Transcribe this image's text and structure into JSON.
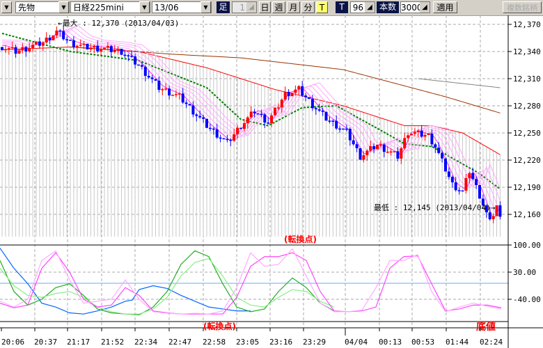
{
  "toolbar": {
    "menu_arrow": "▼",
    "market": "先物",
    "product": "日経225mini",
    "contract": "13/06",
    "bar_label": "足",
    "period_value": "1",
    "day": "日",
    "week": "週",
    "month": "月",
    "minute": "分",
    "tick": "T",
    "t_label": "T",
    "t_value": "96",
    "count_label": "本数",
    "count_value": "3000",
    "apply": "適用",
    "multi": "複数銘柄"
  },
  "annotations": {
    "max": "←最大 : 12,370 (2013/04/03)",
    "min": "最低 : 12,145 (2013/04/04)→",
    "turn_top": "(転換点)",
    "turn_bottom": "(転換点)",
    "bottom_value": "底値"
  },
  "colors": {
    "up": "#ff0000",
    "down": "#0000ff",
    "ma_green": "#008000",
    "ma_red": "#ff0000",
    "ma_brown": "#993300",
    "ma_gray": "#808080",
    "osc_pink": "#ff66ff",
    "osc_green": "#33aa33",
    "osc_blue": "#0066ff"
  },
  "chart_data": {
    "type": "candlestick",
    "price_axis": {
      "min": 12145,
      "max": 12370,
      "ticks": [
        "12,370",
        "12,340",
        "12,310",
        "12,280",
        "12,250",
        "12,220",
        "12,190",
        "12,160"
      ],
      "tick_values": [
        12370,
        12340,
        12310,
        12280,
        12250,
        12220,
        12190,
        12160
      ]
    },
    "osc_axis": {
      "ticks": [
        "100.00",
        "30.00",
        "-40.00"
      ],
      "tick_values": [
        100,
        30,
        -40
      ]
    },
    "time_labels": [
      "20:06",
      "20:37",
      "21:17",
      "21:52",
      "22:34",
      "22:47",
      "22:58",
      "23:05",
      "23:16",
      "23:29",
      "04/04",
      "00:13",
      "00:53",
      "01:44",
      "02:24"
    ],
    "bars": 147,
    "price_path": [
      [
        0,
        12345
      ],
      [
        4,
        12340
      ],
      [
        8,
        12345
      ],
      [
        12,
        12350
      ],
      [
        16,
        12362
      ],
      [
        20,
        12350
      ],
      [
        24,
        12345
      ],
      [
        30,
        12343
      ],
      [
        35,
        12340
      ],
      [
        40,
        12325
      ],
      [
        46,
        12300
      ],
      [
        52,
        12290
      ],
      [
        60,
        12258
      ],
      [
        66,
        12239
      ],
      [
        70,
        12258
      ],
      [
        74,
        12274
      ],
      [
        78,
        12262
      ],
      [
        83,
        12293
      ],
      [
        87,
        12298
      ],
      [
        91,
        12281
      ],
      [
        95,
        12266
      ],
      [
        101,
        12251
      ],
      [
        105,
        12224
      ],
      [
        110,
        12237
      ],
      [
        116,
        12224
      ],
      [
        119,
        12251
      ],
      [
        125,
        12247
      ],
      [
        127,
        12235
      ],
      [
        132,
        12193
      ],
      [
        135,
        12185
      ],
      [
        137,
        12208
      ],
      [
        140,
        12181
      ],
      [
        143,
        12151
      ],
      [
        145,
        12170
      ],
      [
        146,
        12155
      ]
    ],
    "ma_green": [
      [
        0,
        12360
      ],
      [
        20,
        12340
      ],
      [
        40,
        12330
      ],
      [
        60,
        12300
      ],
      [
        70,
        12265
      ],
      [
        78,
        12258
      ],
      [
        88,
        12278
      ],
      [
        98,
        12280
      ],
      [
        110,
        12255
      ],
      [
        118,
        12238
      ],
      [
        126,
        12235
      ],
      [
        133,
        12220
      ],
      [
        140,
        12205
      ],
      [
        146,
        12188
      ]
    ],
    "ma_red": [
      [
        0,
        12342
      ],
      [
        20,
        12345
      ],
      [
        40,
        12340
      ],
      [
        60,
        12322
      ],
      [
        80,
        12298
      ],
      [
        100,
        12280
      ],
      [
        118,
        12258
      ],
      [
        126,
        12258
      ],
      [
        135,
        12250
      ],
      [
        146,
        12226
      ]
    ],
    "ma_brown": [
      [
        20,
        12345
      ],
      [
        50,
        12337
      ],
      [
        70,
        12333
      ],
      [
        100,
        12320
      ],
      [
        130,
        12290
      ],
      [
        146,
        12272
      ]
    ],
    "ma_gray": [
      [
        122,
        12310
      ],
      [
        146,
        12300
      ]
    ],
    "osc_series": [
      {
        "name": "blue",
        "color": "#0066ff",
        "points": [
          [
            0,
            92
          ],
          [
            20,
            40
          ],
          [
            40,
            0
          ],
          [
            60,
            -50
          ],
          [
            80,
            -60
          ],
          [
            100,
            -75
          ],
          [
            120,
            -78
          ],
          [
            140,
            -70
          ],
          [
            160,
            -60
          ],
          [
            180,
            -45
          ],
          [
            190,
            -42
          ],
          [
            200,
            -15
          ],
          [
            220,
            -5
          ],
          [
            240,
            -12
          ],
          [
            260,
            -30
          ],
          [
            280,
            -45
          ],
          [
            300,
            -60
          ],
          [
            320,
            -65
          ],
          [
            340,
            -70
          ],
          [
            360,
            -70
          ]
        ]
      },
      {
        "name": "green1",
        "color": "#22aa22",
        "points": [
          [
            0,
            60
          ],
          [
            20,
            -20
          ],
          [
            40,
            -55
          ],
          [
            60,
            -40
          ],
          [
            80,
            -10
          ],
          [
            100,
            0
          ],
          [
            120,
            -30
          ],
          [
            140,
            -65
          ],
          [
            160,
            -75
          ],
          [
            180,
            -78
          ],
          [
            200,
            -80
          ],
          [
            220,
            -60
          ],
          [
            240,
            -20
          ],
          [
            260,
            50
          ],
          [
            280,
            85
          ],
          [
            300,
            70
          ],
          [
            320,
            0
          ],
          [
            340,
            -60
          ],
          [
            360,
            -72
          ],
          [
            380,
            -65
          ],
          [
            400,
            -20
          ],
          [
            420,
            15
          ],
          [
            440,
            -10
          ],
          [
            460,
            -50
          ],
          [
            480,
            -70
          ]
        ]
      },
      {
        "name": "green2",
        "color": "#88ee88",
        "points": [
          [
            0,
            40
          ],
          [
            20,
            -5
          ],
          [
            40,
            -30
          ],
          [
            60,
            -35
          ],
          [
            80,
            -25
          ],
          [
            100,
            -20
          ],
          [
            120,
            -35
          ],
          [
            140,
            -60
          ],
          [
            160,
            -72
          ],
          [
            180,
            -78
          ],
          [
            200,
            -78
          ],
          [
            220,
            -65
          ],
          [
            240,
            -35
          ],
          [
            260,
            20
          ],
          [
            280,
            55
          ],
          [
            300,
            65
          ],
          [
            320,
            20
          ],
          [
            340,
            -35
          ],
          [
            360,
            -55
          ],
          [
            380,
            -60
          ],
          [
            400,
            -35
          ],
          [
            420,
            -15
          ],
          [
            440,
            -20
          ],
          [
            460,
            -45
          ],
          [
            480,
            -60
          ]
        ]
      },
      {
        "name": "pink1",
        "color": "#ff44ff",
        "points": [
          [
            0,
            -50
          ],
          [
            20,
            -62
          ],
          [
            40,
            -55
          ],
          [
            60,
            40
          ],
          [
            80,
            80
          ],
          [
            100,
            30
          ],
          [
            120,
            -40
          ],
          [
            140,
            -60
          ],
          [
            160,
            -55
          ],
          [
            180,
            -10
          ],
          [
            200,
            -30
          ],
          [
            220,
            -70
          ],
          [
            240,
            -75
          ],
          [
            260,
            -78
          ],
          [
            280,
            -78
          ],
          [
            300,
            -78
          ],
          [
            320,
            -78
          ],
          [
            340,
            -35
          ],
          [
            360,
            45
          ],
          [
            380,
            70
          ],
          [
            400,
            70
          ],
          [
            420,
            80
          ],
          [
            440,
            60
          ],
          [
            460,
            -20
          ],
          [
            480,
            -70
          ],
          [
            500,
            -72
          ],
          [
            520,
            -70
          ],
          [
            540,
            -60
          ],
          [
            560,
            40
          ],
          [
            580,
            70
          ],
          [
            600,
            72
          ],
          [
            620,
            0
          ],
          [
            640,
            -70
          ],
          [
            660,
            -65
          ],
          [
            680,
            -55
          ],
          [
            700,
            -55
          ],
          [
            720,
            -62
          ]
        ]
      },
      {
        "name": "pink2",
        "color": "#ffaaff",
        "points": [
          [
            0,
            -45
          ],
          [
            20,
            -60
          ],
          [
            40,
            -40
          ],
          [
            60,
            60
          ],
          [
            80,
            85
          ],
          [
            100,
            10
          ],
          [
            120,
            -50
          ],
          [
            140,
            -45
          ],
          [
            160,
            -40
          ],
          [
            180,
            10
          ],
          [
            200,
            -40
          ],
          [
            220,
            -72
          ],
          [
            240,
            -76
          ],
          [
            260,
            -78
          ],
          [
            280,
            -76
          ],
          [
            300,
            -78
          ],
          [
            320,
            -70
          ],
          [
            340,
            -10
          ],
          [
            360,
            80
          ],
          [
            380,
            45
          ],
          [
            400,
            50
          ],
          [
            420,
            90
          ],
          [
            440,
            20
          ],
          [
            460,
            -50
          ],
          [
            480,
            -72
          ],
          [
            500,
            -72
          ],
          [
            520,
            -68
          ],
          [
            540,
            -10
          ],
          [
            560,
            60
          ],
          [
            580,
            60
          ],
          [
            600,
            75
          ],
          [
            620,
            -20
          ],
          [
            640,
            -72
          ],
          [
            660,
            -60
          ],
          [
            680,
            -50
          ],
          [
            700,
            -58
          ],
          [
            720,
            -65
          ]
        ]
      }
    ]
  }
}
